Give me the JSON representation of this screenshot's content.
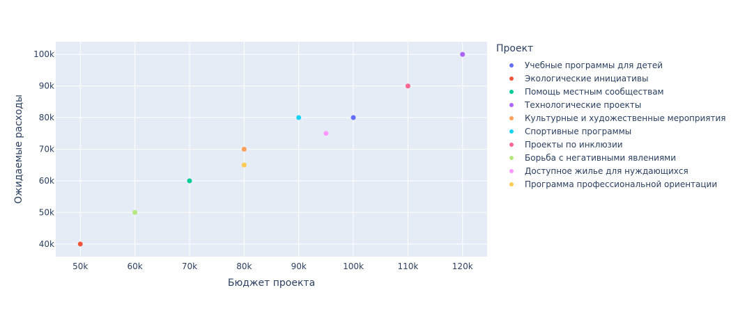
{
  "chart_data": {
    "type": "scatter",
    "xlabel": "Бюджет проекта",
    "ylabel": "Ожидаемые расходы",
    "xlim": [
      45500,
      124500
    ],
    "ylim": [
      36000,
      104000
    ],
    "x_ticks": [
      50000,
      60000,
      70000,
      80000,
      90000,
      100000,
      110000,
      120000
    ],
    "x_tick_labels": [
      "50k",
      "60k",
      "70k",
      "80k",
      "90k",
      "100k",
      "110k",
      "120k"
    ],
    "y_ticks": [
      40000,
      50000,
      60000,
      70000,
      80000,
      90000,
      100000
    ],
    "y_tick_labels": [
      "40k",
      "50k",
      "60k",
      "70k",
      "80k",
      "90k",
      "100k"
    ],
    "grid": true,
    "legend_title": "Проект",
    "legend_position": "right",
    "series": [
      {
        "name": "Учебные программы для детей",
        "color": "#636efa",
        "x": [
          100000
        ],
        "y": [
          80000
        ]
      },
      {
        "name": "Экологические инициативы",
        "color": "#ef553b",
        "x": [
          50000
        ],
        "y": [
          40000
        ]
      },
      {
        "name": "Помощь местным сообществам",
        "color": "#00cc96",
        "x": [
          70000
        ],
        "y": [
          60000
        ]
      },
      {
        "name": "Технологические проекты",
        "color": "#ab63fa",
        "x": [
          120000
        ],
        "y": [
          100000
        ]
      },
      {
        "name": "Культурные и художественные мероприятия",
        "color": "#ffa15a",
        "x": [
          80000
        ],
        "y": [
          70000
        ]
      },
      {
        "name": "Спортивные программы",
        "color": "#19d3f3",
        "x": [
          90000
        ],
        "y": [
          80000
        ]
      },
      {
        "name": "Проекты по инклюзии",
        "color": "#ff6692",
        "x": [
          110000
        ],
        "y": [
          90000
        ]
      },
      {
        "name": "Борьба с негативными явлениями",
        "color": "#b6e880",
        "x": [
          60000
        ],
        "y": [
          50000
        ]
      },
      {
        "name": "Доступное жилье для нуждающихся",
        "color": "#ff97ff",
        "x": [
          95000
        ],
        "y": [
          75000
        ]
      },
      {
        "name": "Программа профессиональной ориентации",
        "color": "#fecb52",
        "x": [
          80000
        ],
        "y": [
          65000
        ]
      }
    ]
  }
}
